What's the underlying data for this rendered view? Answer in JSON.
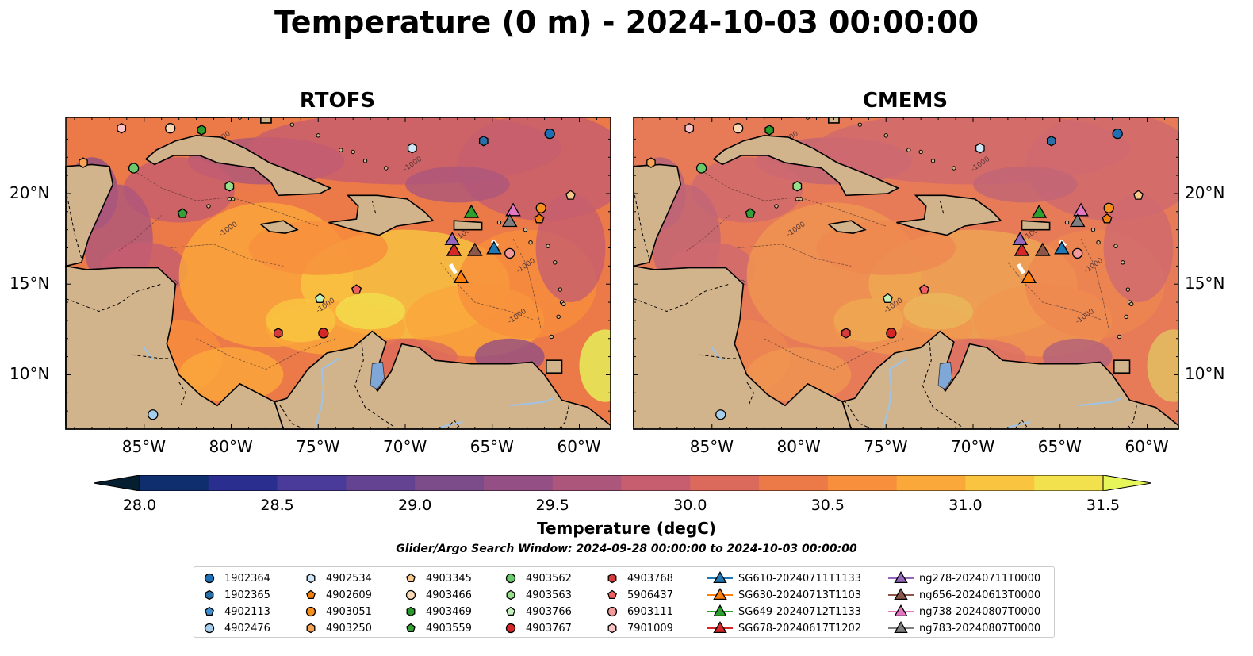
{
  "figure": {
    "title": "Temperature (0 m) - 2024-10-03 00:00:00",
    "search_window": "Glider/Argo Search Window: 2024-09-28 00:00:00 to 2024-10-03 00:00:00"
  },
  "panels": [
    {
      "name": "RTOFS",
      "title": "RTOFS"
    },
    {
      "name": "CMEMS",
      "title": "CMEMS"
    }
  ],
  "axes": {
    "lon_ticks": [
      "85°W",
      "80°W",
      "75°W",
      "70°W",
      "65°W",
      "60°W"
    ],
    "lat_ticks": [
      "20°N",
      "15°N",
      "10°N"
    ],
    "lon_range": [
      -89.5,
      -58.2
    ],
    "lat_range": [
      7.0,
      24.2
    ],
    "contour_label": "-1000"
  },
  "colorbar": {
    "label": "Temperature (degC)",
    "min": 28.0,
    "max": 31.5,
    "tick_labels": [
      "28.0",
      "28.5",
      "29.0",
      "29.5",
      "30.0",
      "30.5",
      "31.0",
      "31.5"
    ],
    "colors": [
      "#061f30",
      "#0f2e6e",
      "#2a2f8f",
      "#4a3a9a",
      "#644492",
      "#7c4b8a",
      "#944f85",
      "#ad567c",
      "#c65e6f",
      "#dc6a5c",
      "#ec7a48",
      "#f78f3c",
      "#fba83b",
      "#f9c541",
      "#f2e04c",
      "#e6f55a"
    ]
  },
  "colors": {
    "land": "#d2b48c",
    "lake": "#7fa8d8",
    "river": "#9ec3e6"
  },
  "legend": [
    {
      "label": "1902364",
      "marker": "circle",
      "color": "#1f6fb4"
    },
    {
      "label": "1902365",
      "marker": "hexagon",
      "color": "#2a6fa8"
    },
    {
      "label": "4902113",
      "marker": "pentagon",
      "color": "#3f8fd0"
    },
    {
      "label": "4902476",
      "marker": "circle",
      "color": "#a6cdea"
    },
    {
      "label": "4902534",
      "marker": "hexagon",
      "color": "#cfe6f6"
    },
    {
      "label": "4902609",
      "marker": "pentagon",
      "color": "#f07f12"
    },
    {
      "label": "4903051",
      "marker": "circle",
      "color": "#f5901e"
    },
    {
      "label": "4903250",
      "marker": "hexagon",
      "color": "#f6a356"
    },
    {
      "label": "4903345",
      "marker": "pentagon",
      "color": "#f9c88c"
    },
    {
      "label": "4903466",
      "marker": "circle",
      "color": "#fbd9b5"
    },
    {
      "label": "4903469",
      "marker": "hexagon",
      "color": "#2a9a2a"
    },
    {
      "label": "4903559",
      "marker": "pentagon",
      "color": "#35a035"
    },
    {
      "label": "4903562",
      "marker": "circle",
      "color": "#6bc86b"
    },
    {
      "label": "4903563",
      "marker": "hexagon",
      "color": "#98df8a"
    },
    {
      "label": "4903766",
      "marker": "pentagon",
      "color": "#c4f0bc"
    },
    {
      "label": "4903767",
      "marker": "circle",
      "color": "#d62728"
    },
    {
      "label": "4903768",
      "marker": "hexagon",
      "color": "#d83b3b"
    },
    {
      "label": "5906437",
      "marker": "pentagon",
      "color": "#f06060"
    },
    {
      "label": "6903111",
      "marker": "circle",
      "color": "#f29a9a"
    },
    {
      "label": "7901009",
      "marker": "hexagon",
      "color": "#fcc4c4"
    },
    {
      "label": "SG610-20240711T1133",
      "marker": "triangle",
      "color": "#1f77b4"
    },
    {
      "label": "SG630-20240713T1103",
      "marker": "triangle",
      "color": "#ff7f0e"
    },
    {
      "label": "SG649-20240712T1133",
      "marker": "triangle",
      "color": "#2ca02c"
    },
    {
      "label": "SG678-20240617T1202",
      "marker": "triangle",
      "color": "#d62728"
    },
    {
      "label": "ng278-20240711T0000",
      "marker": "triangle",
      "color": "#9467bd"
    },
    {
      "label": "ng656-20240613T0000",
      "marker": "triangle",
      "color": "#8c564b"
    },
    {
      "label": "ng738-20240807T0000",
      "marker": "triangle",
      "color": "#e377c2"
    },
    {
      "label": "ng783-20240807T0000",
      "marker": "triangle",
      "color": "#7f7f7f"
    }
  ],
  "platforms": [
    {
      "id": "1902364",
      "lon": -61.7,
      "lat": 23.3
    },
    {
      "id": "1902365",
      "lon": -65.5,
      "lat": 22.9
    },
    {
      "id": "4902113",
      "lon": -62.3,
      "lat": 18.6
    },
    {
      "id": "4902476",
      "lon": -84.5,
      "lat": 7.8
    },
    {
      "id": "4902534",
      "lon": -69.6,
      "lat": 22.5
    },
    {
      "id": "4902609",
      "lon": -62.3,
      "lat": 18.6
    },
    {
      "id": "4903051",
      "lon": -62.2,
      "lat": 19.2
    },
    {
      "id": "4903250",
      "lon": -88.5,
      "lat": 21.7
    },
    {
      "id": "4903345",
      "lon": -60.5,
      "lat": 19.9
    },
    {
      "id": "4903466",
      "lon": -83.5,
      "lat": 23.6
    },
    {
      "id": "4903469",
      "lon": -81.7,
      "lat": 23.5
    },
    {
      "id": "4903559",
      "lon": -82.8,
      "lat": 18.9
    },
    {
      "id": "4903562",
      "lon": -85.6,
      "lat": 21.4
    },
    {
      "id": "4903563",
      "lon": -80.1,
      "lat": 20.4
    },
    {
      "id": "4903766",
      "lon": -74.9,
      "lat": 14.2
    },
    {
      "id": "4903767",
      "lon": -74.7,
      "lat": 12.3
    },
    {
      "id": "4903768",
      "lon": -77.3,
      "lat": 12.3
    },
    {
      "id": "5906437",
      "lon": -72.8,
      "lat": 14.7
    },
    {
      "id": "6903111",
      "lon": -64.0,
      "lat": 16.7
    },
    {
      "id": "7901009",
      "lon": -86.3,
      "lat": 23.6
    },
    {
      "id": "SG610-20240711T1133",
      "lon": -64.9,
      "lat": 16.9
    },
    {
      "id": "SG630-20240713T1103",
      "lon": -66.8,
      "lat": 15.3
    },
    {
      "id": "SG649-20240712T1133",
      "lon": -66.2,
      "lat": 18.9
    },
    {
      "id": "SG678-20240617T1202",
      "lon": -67.2,
      "lat": 16.8
    },
    {
      "id": "ng278-20240711T0000",
      "lon": -67.3,
      "lat": 17.4
    },
    {
      "id": "ng656-20240613T0000",
      "lon": -66.0,
      "lat": 16.8
    },
    {
      "id": "ng738-20240807T0000",
      "lon": -63.8,
      "lat": 19.0
    },
    {
      "id": "ng783-20240807T0000",
      "lon": -64.0,
      "lat": 18.4
    }
  ]
}
